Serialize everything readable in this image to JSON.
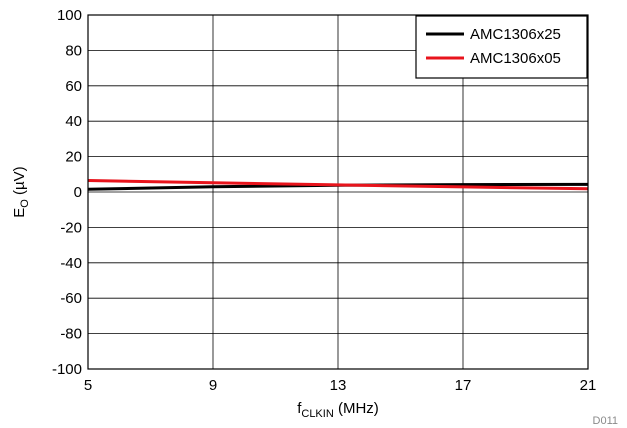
{
  "chart_data": {
    "type": "line",
    "title": "",
    "xlabel": {
      "main": "f",
      "sub": "CLKIN",
      "rest": " (MHz)"
    },
    "ylabel": {
      "main": "E",
      "sub": "O",
      "rest": " (µV)"
    },
    "xlim": [
      5,
      21
    ],
    "ylim": [
      -100,
      100
    ],
    "x_ticks": [
      5,
      9,
      13,
      17,
      21
    ],
    "x_tick_labels": [
      "5",
      "9",
      "13",
      "17",
      "21"
    ],
    "y_ticks": [
      100,
      80,
      60,
      40,
      20,
      0,
      -20,
      -40,
      -60,
      -80,
      -100
    ],
    "y_tick_labels": [
      "100",
      "80",
      "60",
      "40",
      "20",
      "0",
      "-20",
      "-40",
      "-60",
      "-80",
      "-100"
    ],
    "grid": true,
    "legend_position": "top-right",
    "series": [
      {
        "name": "AMC1306x25",
        "color": "#000000",
        "x": [
          5,
          9,
          13,
          17,
          21
        ],
        "y": [
          1.5,
          3.0,
          3.8,
          4.2,
          4.3
        ]
      },
      {
        "name": "AMC1306x05",
        "color": "#e8141c",
        "x": [
          5,
          9,
          13,
          17,
          21
        ],
        "y": [
          6.5,
          5.2,
          4.0,
          2.9,
          1.8
        ]
      }
    ]
  },
  "figure_id": "D011"
}
